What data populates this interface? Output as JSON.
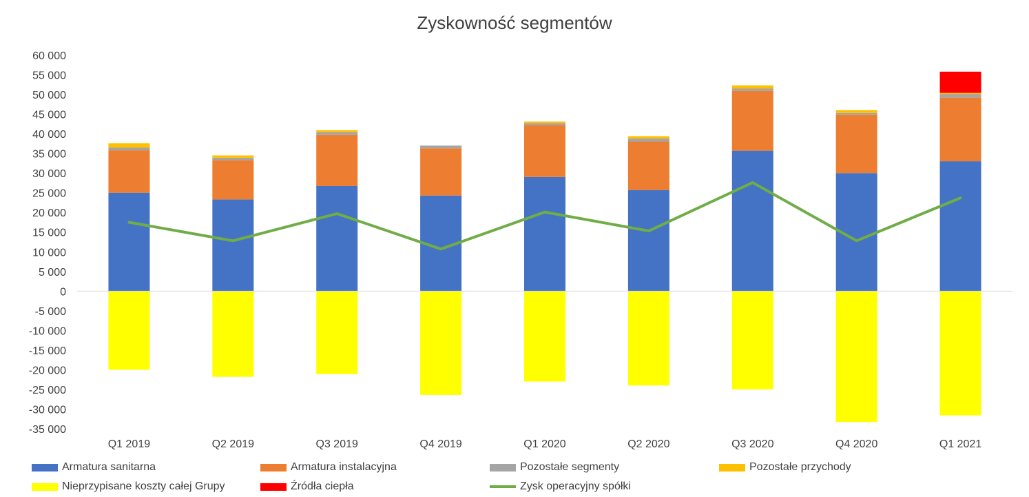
{
  "chart_data": {
    "type": "bar",
    "title": "Zyskowność segmentów",
    "categories": [
      "Q1 2019",
      "Q2 2019",
      "Q3 2019",
      "Q4 2019",
      "Q1 2020",
      "Q2 2020",
      "Q3 2020",
      "Q4 2020",
      "Q1 2021"
    ],
    "ylim": [
      -35000,
      60000
    ],
    "yticks": [
      60000,
      55000,
      50000,
      45000,
      40000,
      35000,
      30000,
      25000,
      20000,
      15000,
      10000,
      5000,
      0,
      -5000,
      -10000,
      -15000,
      -20000,
      -25000,
      -30000,
      -35000
    ],
    "ytick_labels": [
      "60 000",
      "55 000",
      "50 000",
      "45 000",
      "40 000",
      "35 000",
      "30 000",
      "25 000",
      "20 000",
      "15 000",
      "10 000",
      "5 000",
      "0",
      "-5 000",
      "-10 000",
      "-15 000",
      "-20 000",
      "-25 000",
      "-30 000",
      "-35 000"
    ],
    "grid": false,
    "legend_position": "bottom",
    "stacked_series": [
      {
        "name": "Armatura sanitarna",
        "color": "#4472C4",
        "values": [
          25000,
          23300,
          26700,
          24300,
          29000,
          25700,
          35700,
          30000,
          33000
        ]
      },
      {
        "name": "Armatura instalacyjna",
        "color": "#ED7D31",
        "values": [
          10800,
          10000,
          13000,
          12000,
          13200,
          12300,
          15200,
          14800,
          16200
        ]
      },
      {
        "name": "Pozostałe segmenty",
        "color": "#A5A5A5",
        "values": [
          700,
          600,
          700,
          700,
          500,
          800,
          600,
          500,
          900
        ]
      },
      {
        "name": "Pozostałe przychody",
        "color": "#FFC000",
        "values": [
          1100,
          600,
          500,
          0,
          400,
          600,
          800,
          700,
          300
        ]
      },
      {
        "name": "Źródła ciepła",
        "color": "#FF0000",
        "values": [
          0,
          0,
          0,
          0,
          0,
          0,
          0,
          0,
          5400
        ]
      }
    ],
    "negative_series": [
      {
        "name": "Nieprzypisane koszty całej Grupy",
        "color": "#FFFF00",
        "values": [
          -20000,
          -21800,
          -21100,
          -26400,
          -23000,
          -24000,
          -25000,
          -33300,
          -31600
        ]
      }
    ],
    "line_series": [
      {
        "name": "Zysk operacyjny spółki",
        "color": "#70AD47",
        "values": [
          17500,
          12800,
          19700,
          10700,
          20100,
          15300,
          27600,
          12800,
          23700
        ]
      }
    ],
    "legend": [
      {
        "label": "Armatura sanitarna",
        "kind": "box",
        "color": "#4472C4"
      },
      {
        "label": "Armatura instalacyjna",
        "kind": "box",
        "color": "#ED7D31"
      },
      {
        "label": "Pozostałe segmenty",
        "kind": "box",
        "color": "#A5A5A5"
      },
      {
        "label": "Pozostałe przychody",
        "kind": "box",
        "color": "#FFC000"
      },
      {
        "label": "Nieprzypisane koszty całej Grupy",
        "kind": "box",
        "color": "#FFFF00"
      },
      {
        "label": "Źródła ciepła",
        "kind": "box",
        "color": "#FF0000"
      },
      {
        "label": "Zysk operacyjny spółki",
        "kind": "line",
        "color": "#70AD47"
      }
    ]
  }
}
